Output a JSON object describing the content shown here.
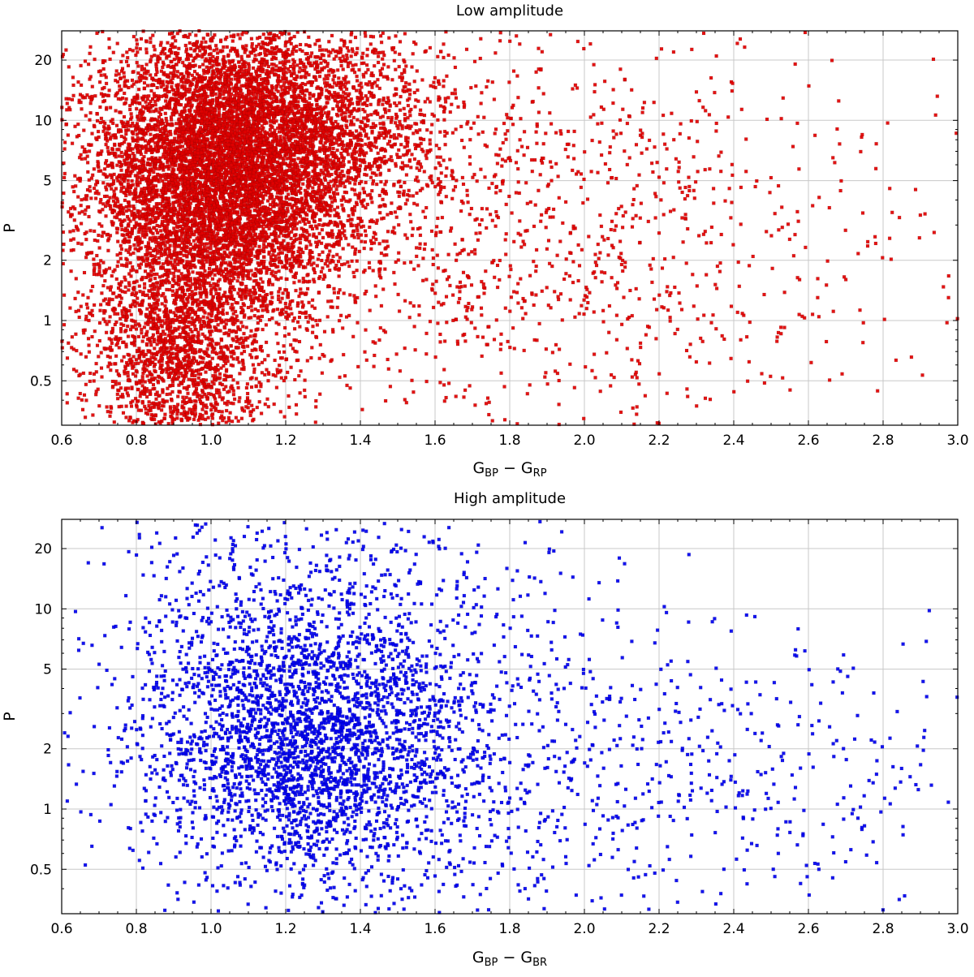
{
  "chart_data": [
    {
      "type": "scatter",
      "title": "Low amplitude",
      "xlabel": {
        "main": "G",
        "sub1": "BP",
        "minus": " − G",
        "sub2": "RP"
      },
      "ylabel": "P",
      "xlim": [
        0.6,
        3.0
      ],
      "ylim": [
        0.3,
        28
      ],
      "yscale": "log",
      "grid": true,
      "x_ticks": [
        "0.6",
        "0.8",
        "1.0",
        "1.2",
        "1.4",
        "1.6",
        "1.8",
        "2.0",
        "2.2",
        "2.4",
        "2.6",
        "2.8",
        "3.0"
      ],
      "y_ticks": [
        {
          "value": 0.5,
          "label": "0.5"
        },
        {
          "value": 1,
          "label": "1"
        },
        {
          "value": 2,
          "label": "2"
        },
        {
          "value": 5,
          "label": "5"
        },
        {
          "value": 10,
          "label": "10"
        },
        {
          "value": 20,
          "label": "20"
        }
      ],
      "color": "#e00000",
      "series": [
        {
          "n": 6500,
          "cx": 1.02,
          "sx": 0.17,
          "logp_center": 0.7,
          "logp_sd": 0.36
        },
        {
          "n": 3000,
          "cx": 1.2,
          "sx": 0.22,
          "logp_center": 0.95,
          "logp_sd": 0.28
        },
        {
          "n": 1800,
          "cx": 0.92,
          "sx": 0.12,
          "logp_center": -0.2,
          "logp_sd": 0.3
        },
        {
          "n": 1500,
          "cx": 1.75,
          "sx": 0.55,
          "logp_center": 0.4,
          "logp_sd": 0.55
        }
      ]
    },
    {
      "type": "scatter",
      "title": "High amplitude",
      "xlabel": {
        "main": "G",
        "sub1": "BP",
        "minus": " − G",
        "sub2": "BR"
      },
      "ylabel": "P",
      "xlim": [
        0.6,
        3.0
      ],
      "ylim": [
        0.3,
        28
      ],
      "yscale": "log",
      "grid": true,
      "x_ticks": [
        "0.6",
        "0.8",
        "1.0",
        "1.2",
        "1.4",
        "1.6",
        "1.8",
        "2.0",
        "2.2",
        "2.4",
        "2.6",
        "2.8",
        "3.0"
      ],
      "y_ticks": [
        {
          "value": 0.5,
          "label": "0.5"
        },
        {
          "value": 1,
          "label": "1"
        },
        {
          "value": 2,
          "label": "2"
        },
        {
          "value": 5,
          "label": "5"
        },
        {
          "value": 10,
          "label": "10"
        },
        {
          "value": 20,
          "label": "20"
        }
      ],
      "color": "#0000ee",
      "series": [
        {
          "n": 2600,
          "cx": 1.27,
          "sx": 0.22,
          "logp_center": 0.32,
          "logp_sd": 0.34
        },
        {
          "n": 700,
          "cx": 1.25,
          "sx": 0.3,
          "logp_center": 0.95,
          "logp_sd": 0.38
        },
        {
          "n": 800,
          "cx": 1.75,
          "sx": 0.5,
          "logp_center": 0.2,
          "logp_sd": 0.45
        },
        {
          "n": 170,
          "cx": 2.5,
          "sx": 0.3,
          "logp_center": 0.2,
          "logp_sd": 0.35
        }
      ]
    }
  ]
}
